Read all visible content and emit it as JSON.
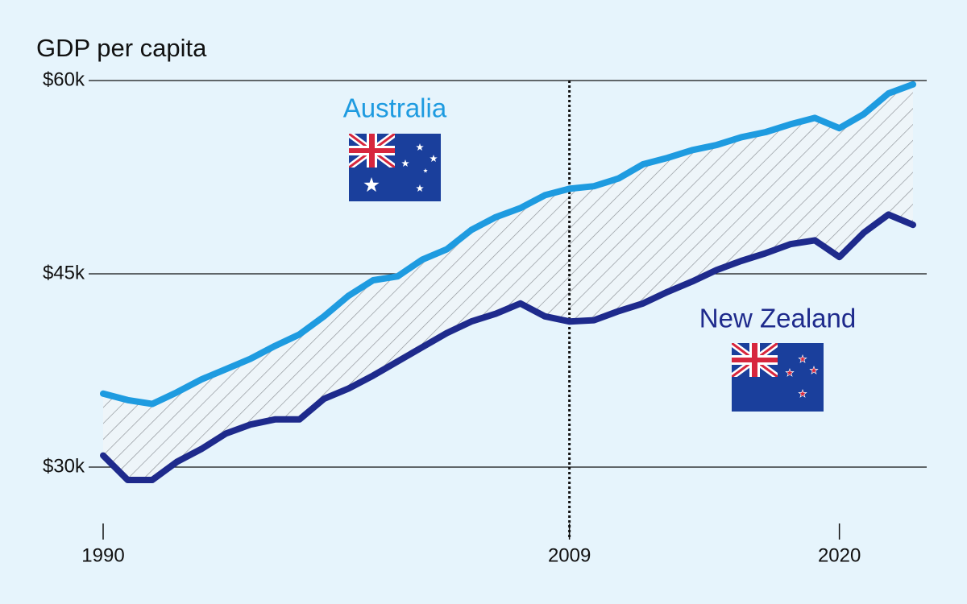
{
  "chart_data": {
    "type": "line",
    "title": "GDP per capita",
    "x": [
      1990,
      1991,
      1992,
      1993,
      1994,
      1995,
      1996,
      1997,
      1998,
      1999,
      2000,
      2001,
      2002,
      2003,
      2004,
      2005,
      2006,
      2007,
      2008,
      2009,
      2010,
      2011,
      2012,
      2013,
      2014,
      2015,
      2016,
      2017,
      2018,
      2019,
      2020,
      2021,
      2022,
      2023
    ],
    "series": [
      {
        "name": "Australia",
        "color": "#1e9be0",
        "values": [
          35700,
          35200,
          34900,
          35800,
          36800,
          37600,
          38400,
          39400,
          40300,
          41700,
          43300,
          44500,
          44800,
          46100,
          46900,
          48400,
          49400,
          50100,
          51100,
          51600,
          51800,
          52400,
          53500,
          54000,
          54600,
          55000,
          55600,
          56000,
          56600,
          57100,
          56300,
          57400,
          59000,
          59700
        ]
      },
      {
        "name": "New Zealand",
        "color": "#1e2a8c",
        "values": [
          30900,
          29000,
          29000,
          30400,
          31400,
          32600,
          33300,
          33700,
          33700,
          35300,
          36100,
          37100,
          38200,
          39300,
          40400,
          41300,
          41900,
          42700,
          41700,
          41300,
          41400,
          42100,
          42700,
          43600,
          44400,
          45300,
          46000,
          46600,
          47300,
          47600,
          46300,
          48200,
          49600,
          48800
        ]
      }
    ],
    "xlim": [
      1990,
      2023
    ],
    "xticks": [
      1990,
      2009,
      2020
    ],
    "reference_line_x": 2009,
    "ylim": [
      25000,
      60000
    ],
    "yticks": [
      {
        "value": 30000,
        "label": "$30k"
      },
      {
        "value": 45000,
        "label": "$45k"
      },
      {
        "value": 60000,
        "label": "$60k"
      }
    ],
    "grid": true
  }
}
